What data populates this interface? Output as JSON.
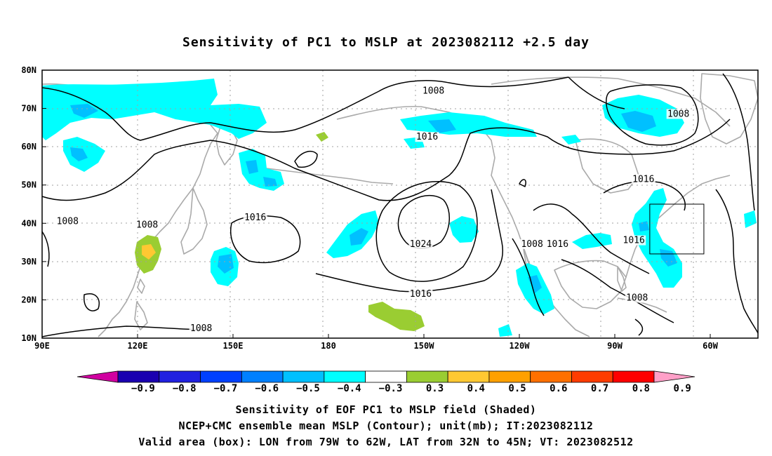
{
  "title": "Sensitivity of PC1 to MSLP at 2023082112 +2.5 day",
  "axes": {
    "lon_labels": [
      "90E",
      "120E",
      "150E",
      "180",
      "150W",
      "120W",
      "90W",
      "60W"
    ],
    "lat_labels": [
      "80N",
      "70N",
      "60N",
      "50N",
      "40N",
      "30N",
      "20N",
      "10N"
    ]
  },
  "contour_labels": [
    {
      "text": "1008",
      "lon": -147,
      "lat": 74
    },
    {
      "text": "1016",
      "lon": -149,
      "lat": 62
    },
    {
      "text": "1016",
      "lon": -81,
      "lat": 51
    },
    {
      "text": "1008",
      "lon": -70,
      "lat": 68
    },
    {
      "text": "1008",
      "lon": 98,
      "lat": 40
    },
    {
      "text": "1008",
      "lon": 123,
      "lat": 39
    },
    {
      "text": "1016",
      "lon": 157,
      "lat": 41
    },
    {
      "text": "1024",
      "lon": -151,
      "lat": 34
    },
    {
      "text": "1008",
      "lon": -116,
      "lat": 34
    },
    {
      "text": "1016",
      "lon": -108,
      "lat": 34
    },
    {
      "text": "1016",
      "lon": -84,
      "lat": 35
    },
    {
      "text": "1016",
      "lon": -151,
      "lat": 21
    },
    {
      "text": "1008",
      "lon": -83,
      "lat": 20
    },
    {
      "text": "1008",
      "lon": 140,
      "lat": 12
    }
  ],
  "colorbar": {
    "labels": [
      "-0.9",
      "-0.8",
      "-0.7",
      "-0.6",
      "-0.5",
      "-0.4",
      "-0.3",
      "0.3",
      "0.4",
      "0.5",
      "0.6",
      "0.7",
      "0.8",
      "0.9"
    ],
    "colors": [
      "#d000a0",
      "#1a00b0",
      "#2020e0",
      "#0040ff",
      "#0080ff",
      "#00c0ff",
      "#00ffff",
      "#ffffff",
      "#9acd32",
      "#ffc832",
      "#ffa000",
      "#ff7000",
      "#ff3c00",
      "#ff0000",
      "#ffa0c8"
    ]
  },
  "valid_box": {
    "lon_min": -79,
    "lon_max": -62,
    "lat_min": 32,
    "lat_max": 45
  },
  "captions": [
    "Sensitivity of EOF PC1 to MSLP field (Shaded)",
    "NCEP+CMC ensemble mean MSLP (Contour); unit(mb); IT:2023082112",
    "Valid area (box): LON from 79W to 62W, LAT from 32N to 45N; VT: 2023082512"
  ]
}
